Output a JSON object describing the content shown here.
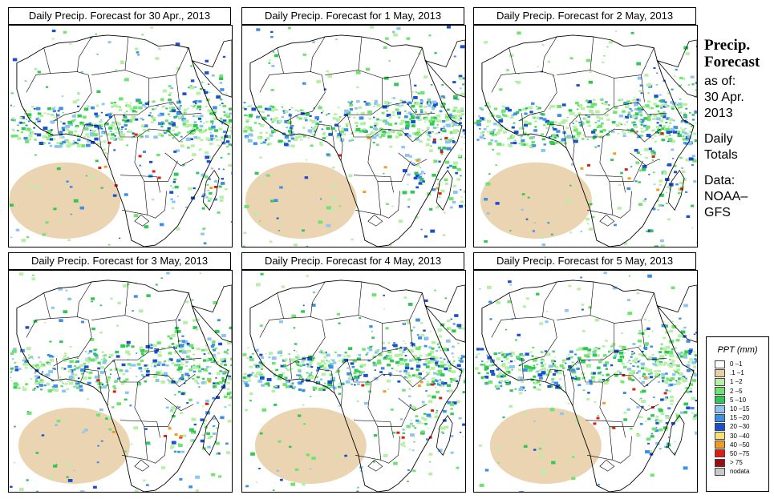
{
  "panels": [
    {
      "title": "Daily Precip. Forecast for  30 Apr., 2013"
    },
    {
      "title": "Daily Precip. Forecast for  1 May, 2013"
    },
    {
      "title": "Daily Precip. Forecast for  2 May, 2013"
    },
    {
      "title": "Daily Precip. Forecast for  3 May, 2013"
    },
    {
      "title": "Daily Precip. Forecast for  4 May, 2013"
    },
    {
      "title": "Daily Precip. Forecast for  5 May, 2013"
    }
  ],
  "side": {
    "heading1": "Precip.",
    "heading2": "Forecast",
    "asof": "as of:",
    "date1": "30 Apr.",
    "date2": "2013",
    "daily1": "Daily",
    "daily2": "Totals",
    "data_label": "Data:",
    "data_src1": "NOAA–",
    "data_src2": "GFS"
  },
  "legend": {
    "title": "PPT (mm)",
    "items": [
      {
        "label": "0 –1",
        "color": "#ffffff"
      },
      {
        "label": ".1 –1",
        "color": "#e8cfa8"
      },
      {
        "label": "1 –2",
        "color": "#b5f0a5"
      },
      {
        "label": "2 –5",
        "color": "#6fe36f"
      },
      {
        "label": "5 –10",
        "color": "#30c854"
      },
      {
        "label": "10 –15",
        "color": "#8cc4f2"
      },
      {
        "label": "15 –20",
        "color": "#3f8ee6"
      },
      {
        "label": "20 –30",
        "color": "#1a4fd0"
      },
      {
        "label": "30 –40",
        "color": "#f7e07a"
      },
      {
        "label": "40 –50",
        "color": "#f59a20"
      },
      {
        "label": "50 –75",
        "color": "#e01e10"
      },
      {
        "label": "> 75",
        "color": "#9a1010"
      },
      {
        "label": "nodata",
        "color": "#c8c8c8"
      }
    ]
  }
}
